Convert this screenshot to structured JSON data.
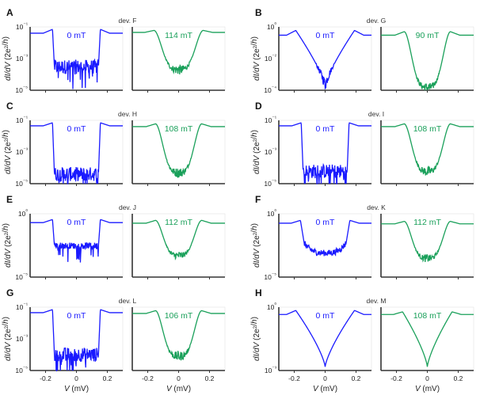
{
  "colors": {
    "zero_field": "#1a1aff",
    "finite_field": "#1aa05a",
    "axis": "#333333"
  },
  "xlabel_var": "V",
  "xlabel_unit": " (mV)",
  "ylabel": "dI/dV (2e²/h)",
  "chart_data": [
    {
      "type": "line",
      "letter": "A",
      "device": "dev. F",
      "yscale": "log",
      "xlim": [
        -0.3,
        0.3
      ],
      "ylim": [
        1e-05,
        0.1
      ],
      "yticks": [
        "10⁻⁵",
        "10⁻³",
        "10⁻¹"
      ],
      "series": [
        {
          "name": "0 mT",
          "profile": "gap_noisy",
          "gap": 0.155,
          "floor": 0.0003,
          "peak": 0.07,
          "out": 0.04
        },
        {
          "name": "114 mT",
          "profile": "soft_v",
          "gap": 0.16,
          "floor": 0.0002,
          "peak": 0.06,
          "out": 0.045
        }
      ]
    },
    {
      "type": "line",
      "letter": "B",
      "device": "dev. G",
      "yscale": "log",
      "xlim": [
        -0.3,
        0.3
      ],
      "ylim": [
        0.0001,
        1
      ],
      "yticks": [
        "10⁻⁴",
        "10⁻²",
        "10⁰"
      ],
      "series": [
        {
          "name": "0 mT",
          "profile": "v_shape",
          "gap": 0.19,
          "floor": 0.0002,
          "peak": 0.6,
          "out": 0.3
        },
        {
          "name": "90 mT",
          "profile": "soft_v",
          "gap": 0.15,
          "floor": 0.00015,
          "peak": 0.5,
          "out": 0.3
        }
      ]
    },
    {
      "type": "line",
      "letter": "C",
      "device": "dev. H",
      "yscale": "log",
      "xlim": [
        -0.3,
        0.3
      ],
      "ylim": [
        1e-05,
        0.1
      ],
      "yticks": [
        "10⁻⁵",
        "10⁻³",
        "10⁻¹"
      ],
      "series": [
        {
          "name": "0 mT",
          "profile": "gap_noisy",
          "gap": 0.155,
          "floor": 4e-05,
          "peak": 0.07,
          "out": 0.045
        },
        {
          "name": "108 mT",
          "profile": "soft_v",
          "gap": 0.15,
          "floor": 5e-05,
          "peak": 0.06,
          "out": 0.04
        }
      ]
    },
    {
      "type": "line",
      "letter": "D",
      "device": "dev. I",
      "yscale": "log",
      "xlim": [
        -0.3,
        0.3
      ],
      "ylim": [
        1e-05,
        0.1
      ],
      "yticks": [
        "10⁻⁵",
        "10⁻³",
        "10⁻¹"
      ],
      "series": [
        {
          "name": "0 mT",
          "profile": "gap_noisy",
          "gap": 0.155,
          "floor": 6e-05,
          "peak": 0.07,
          "out": 0.045
        },
        {
          "name": "108 mT",
          "profile": "soft_v",
          "gap": 0.15,
          "floor": 6e-05,
          "peak": 0.06,
          "out": 0.04
        }
      ]
    },
    {
      "type": "line",
      "letter": "E",
      "device": "dev. J",
      "yscale": "log",
      "xlim": [
        -0.3,
        0.3
      ],
      "ylim": [
        1e-05,
        1
      ],
      "yticks": [
        "10⁻⁵",
        "10⁰"
      ],
      "series": [
        {
          "name": "0 mT",
          "profile": "gap_flat",
          "gap": 0.155,
          "floor": 0.003,
          "peak": 0.35,
          "out": 0.2
        },
        {
          "name": "112 mT",
          "profile": "soft_v",
          "gap": 0.15,
          "floor": 0.0005,
          "peak": 0.3,
          "out": 0.18
        }
      ]
    },
    {
      "type": "line",
      "letter": "F",
      "device": "dev. K",
      "yscale": "log",
      "xlim": [
        -0.3,
        0.3
      ],
      "ylim": [
        1e-05,
        1
      ],
      "yticks": [
        "10⁻⁵",
        "10⁰"
      ],
      "series": [
        {
          "name": "0 mT",
          "profile": "u_shape",
          "gap": 0.16,
          "floor": 0.0008,
          "peak": 0.3,
          "out": 0.18
        },
        {
          "name": "112 mT",
          "profile": "soft_v",
          "gap": 0.15,
          "floor": 0.0003,
          "peak": 0.25,
          "out": 0.16
        }
      ]
    },
    {
      "type": "line",
      "letter": "G",
      "device": "dev. L",
      "yscale": "log",
      "xlim": [
        -0.3,
        0.3
      ],
      "ylim": [
        1e-05,
        0.1
      ],
      "yticks": [
        "10⁻⁵",
        "10⁻³",
        "10⁻¹"
      ],
      "series": [
        {
          "name": "0 mT",
          "profile": "gap_noisy",
          "gap": 0.155,
          "floor": 0.0001,
          "peak": 0.07,
          "out": 0.045
        },
        {
          "name": "106 mT",
          "profile": "soft_v",
          "gap": 0.15,
          "floor": 8e-05,
          "peak": 0.06,
          "out": 0.04
        }
      ]
    },
    {
      "type": "line",
      "letter": "H",
      "device": "dev. M",
      "yscale": "log",
      "xlim": [
        -0.3,
        0.3
      ],
      "ylim": [
        0.001,
        1
      ],
      "yticks": [
        "10⁻³",
        "10⁰"
      ],
      "series": [
        {
          "name": "0 mT",
          "profile": "v_smooth",
          "gap": 0.19,
          "floor": 0.0015,
          "peak": 0.7,
          "out": 0.45
        },
        {
          "name": "108 mT",
          "profile": "v_smooth",
          "gap": 0.16,
          "floor": 0.0015,
          "peak": 0.6,
          "out": 0.45
        }
      ]
    }
  ],
  "xticks": [
    "-0.2",
    "0",
    "0.2"
  ]
}
